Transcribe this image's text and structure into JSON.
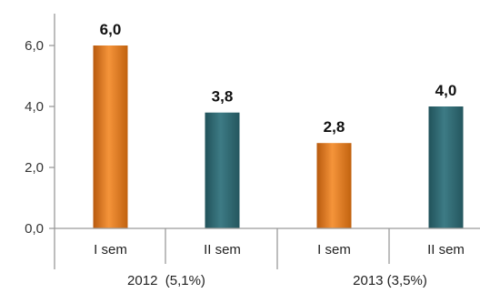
{
  "chart_data": {
    "type": "bar",
    "ylim": [
      0,
      7
    ],
    "yticks": [
      "0,0",
      "2,0",
      "4,0",
      "6,0"
    ],
    "categories": [
      "I sem",
      "II sem",
      "I sem",
      "II sem"
    ],
    "groups": [
      "2012  (5,1%)",
      "2013 (3,5%)"
    ],
    "values": [
      6.0,
      3.8,
      2.8,
      4.0
    ],
    "value_labels": [
      "6,0",
      "3,8",
      "2,8",
      "4,0"
    ],
    "bar_colors": [
      "#e07a1f",
      "#2f6b73",
      "#e07a1f",
      "#2f6b73"
    ],
    "grid": false,
    "legend": "none"
  }
}
